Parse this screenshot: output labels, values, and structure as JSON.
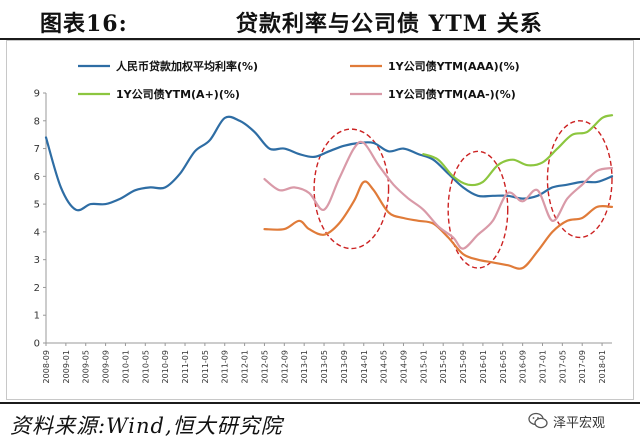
{
  "header": {
    "figure_label": "图表16:",
    "title": "贷款利率与公司债 YTM 关系"
  },
  "footer": {
    "source": "资料来源:Wind,恒大研究院",
    "watermark": "泽平宏观"
  },
  "colors": {
    "loan_rate": "#2e6da4",
    "aaa": "#e07b39",
    "a_plus": "#8cc63f",
    "aa_minus": "#d99aa8",
    "highlight": "#cc2222",
    "axis": "#999999"
  },
  "chart_data": {
    "type": "line",
    "title": "贷款利率与公司债 YTM 关系",
    "xlabel": "",
    "ylabel": "",
    "ylim": [
      0,
      9
    ],
    "yticks": [
      0,
      1,
      2,
      3,
      4,
      5,
      6,
      7,
      8,
      9
    ],
    "x_tick_labels": [
      "2008-09",
      "2009-01",
      "2009-05",
      "2009-09",
      "2010-01",
      "2010-05",
      "2010-09",
      "2011-01",
      "2011-05",
      "2011-09",
      "2012-01",
      "2012-05",
      "2012-09",
      "2013-01",
      "2013-05",
      "2013-09",
      "2014-01",
      "2014-05",
      "2014-09",
      "2015-01",
      "2015-05",
      "2015-09",
      "2016-01",
      "2016-05",
      "2016-09",
      "2017-01",
      "2017-05",
      "2017-09",
      "2018-01"
    ],
    "legend_position": "top",
    "grid": false,
    "series": [
      {
        "name": "人民币贷款加权平均利率(%)",
        "color_key": "loan_rate",
        "points": [
          [
            "2008-09",
            7.4
          ],
          [
            "2008-12",
            5.6
          ],
          [
            "2009-03",
            4.8
          ],
          [
            "2009-06",
            5.0
          ],
          [
            "2009-09",
            5.0
          ],
          [
            "2009-12",
            5.2
          ],
          [
            "2010-03",
            5.5
          ],
          [
            "2010-06",
            5.6
          ],
          [
            "2010-09",
            5.6
          ],
          [
            "2010-12",
            6.1
          ],
          [
            "2011-03",
            6.9
          ],
          [
            "2011-06",
            7.3
          ],
          [
            "2011-09",
            8.1
          ],
          [
            "2011-12",
            8.0
          ],
          [
            "2012-03",
            7.6
          ],
          [
            "2012-06",
            7.0
          ],
          [
            "2012-09",
            7.0
          ],
          [
            "2012-12",
            6.8
          ],
          [
            "2013-03",
            6.7
          ],
          [
            "2013-06",
            6.9
          ],
          [
            "2013-09",
            7.1
          ],
          [
            "2013-12",
            7.2
          ],
          [
            "2014-03",
            7.2
          ],
          [
            "2014-06",
            6.9
          ],
          [
            "2014-09",
            7.0
          ],
          [
            "2014-12",
            6.8
          ],
          [
            "2015-03",
            6.6
          ],
          [
            "2015-06",
            6.1
          ],
          [
            "2015-09",
            5.6
          ],
          [
            "2015-12",
            5.3
          ],
          [
            "2016-03",
            5.3
          ],
          [
            "2016-06",
            5.3
          ],
          [
            "2016-09",
            5.2
          ],
          [
            "2016-12",
            5.3
          ],
          [
            "2017-03",
            5.6
          ],
          [
            "2017-06",
            5.7
          ],
          [
            "2017-09",
            5.8
          ],
          [
            "2017-12",
            5.8
          ],
          [
            "2018-03",
            6.0
          ]
        ]
      },
      {
        "name": "1Y公司债YTM(AAA)(%)",
        "color_key": "aaa",
        "points": [
          [
            "2012-05",
            4.1
          ],
          [
            "2012-09",
            4.1
          ],
          [
            "2012-12",
            4.4
          ],
          [
            "2013-02",
            4.1
          ],
          [
            "2013-05",
            3.9
          ],
          [
            "2013-08",
            4.3
          ],
          [
            "2013-11",
            5.1
          ],
          [
            "2014-01",
            5.8
          ],
          [
            "2014-03",
            5.5
          ],
          [
            "2014-06",
            4.7
          ],
          [
            "2014-09",
            4.5
          ],
          [
            "2014-12",
            4.4
          ],
          [
            "2015-03",
            4.3
          ],
          [
            "2015-06",
            3.8
          ],
          [
            "2015-09",
            3.2
          ],
          [
            "2015-12",
            3.0
          ],
          [
            "2016-03",
            2.9
          ],
          [
            "2016-06",
            2.8
          ],
          [
            "2016-09",
            2.7
          ],
          [
            "2016-12",
            3.3
          ],
          [
            "2017-03",
            4.0
          ],
          [
            "2017-06",
            4.4
          ],
          [
            "2017-09",
            4.5
          ],
          [
            "2017-12",
            4.9
          ],
          [
            "2018-03",
            4.9
          ]
        ]
      },
      {
        "name": "1Y公司债YTM(A+)(%)",
        "color_key": "a_plus",
        "points": [
          [
            "2015-01",
            6.8
          ],
          [
            "2015-04",
            6.6
          ],
          [
            "2015-07",
            6.0
          ],
          [
            "2015-10",
            5.7
          ],
          [
            "2016-01",
            5.8
          ],
          [
            "2016-04",
            6.4
          ],
          [
            "2016-07",
            6.6
          ],
          [
            "2016-10",
            6.4
          ],
          [
            "2017-01",
            6.5
          ],
          [
            "2017-04",
            7.0
          ],
          [
            "2017-07",
            7.5
          ],
          [
            "2017-10",
            7.6
          ],
          [
            "2018-01",
            8.1
          ],
          [
            "2018-03",
            8.2
          ]
        ]
      },
      {
        "name": "1Y公司债YTM(AA-)(%)",
        "color_key": "aa_minus",
        "points": [
          [
            "2012-05",
            5.9
          ],
          [
            "2012-08",
            5.5
          ],
          [
            "2012-11",
            5.6
          ],
          [
            "2013-02",
            5.4
          ],
          [
            "2013-05",
            4.8
          ],
          [
            "2013-08",
            5.9
          ],
          [
            "2013-11",
            7.0
          ],
          [
            "2014-01",
            7.2
          ],
          [
            "2014-04",
            6.4
          ],
          [
            "2014-07",
            5.7
          ],
          [
            "2014-10",
            5.2
          ],
          [
            "2015-01",
            4.8
          ],
          [
            "2015-04",
            4.2
          ],
          [
            "2015-07",
            3.8
          ],
          [
            "2015-09",
            3.4
          ],
          [
            "2015-12",
            3.9
          ],
          [
            "2016-03",
            4.4
          ],
          [
            "2016-06",
            5.4
          ],
          [
            "2016-09",
            5.1
          ],
          [
            "2016-12",
            5.5
          ],
          [
            "2017-03",
            4.4
          ],
          [
            "2017-06",
            5.2
          ],
          [
            "2017-09",
            5.7
          ],
          [
            "2017-12",
            6.2
          ],
          [
            "2018-03",
            6.3
          ]
        ]
      }
    ],
    "highlights": [
      {
        "from": "2013-03",
        "to": "2014-06",
        "ymin": 3.4,
        "ymax": 7.7
      },
      {
        "from": "2015-06",
        "to": "2016-06",
        "ymin": 2.7,
        "ymax": 6.9
      },
      {
        "from": "2017-02",
        "to": "2018-03",
        "ymin": 3.8,
        "ymax": 8.0
      }
    ]
  }
}
